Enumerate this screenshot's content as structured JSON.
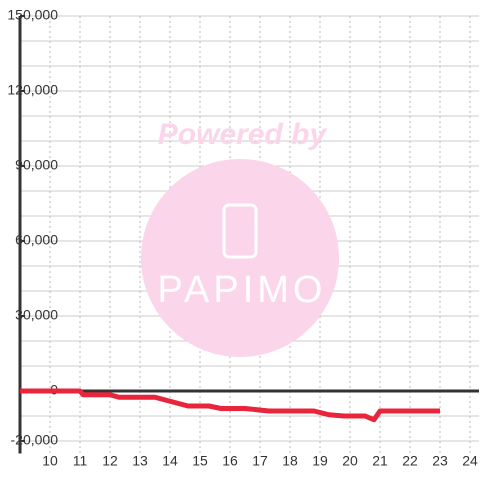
{
  "chart_data": {
    "type": "line",
    "watermark": {
      "top": "Powered by",
      "brand": "PAPIMO"
    },
    "xlim": [
      9,
      24.3
    ],
    "xticks": [
      10,
      11,
      12,
      13,
      14,
      15,
      16,
      17,
      18,
      19,
      20,
      21,
      22,
      23,
      24
    ],
    "ylim": [
      -25000,
      150000
    ],
    "yticks": [
      {
        "value": 150000,
        "label": "150,000"
      },
      {
        "value": 120000,
        "label": "120,000"
      },
      {
        "value": 90000,
        "label": "90,000"
      },
      {
        "value": 60000,
        "label": "60,000"
      },
      {
        "value": 30000,
        "label": "30,000"
      },
      0,
      {
        "value": -20000,
        "label": "-20,000"
      }
    ],
    "ygrid": [
      -20000,
      -10000,
      0,
      10000,
      20000,
      30000,
      40000,
      50000,
      60000,
      70000,
      80000,
      90000,
      100000,
      110000,
      120000,
      130000,
      140000,
      150000
    ],
    "grid": true,
    "series": [
      {
        "color": "#e8253b",
        "x": [
          9,
          11,
          11.1,
          12,
          12.3,
          13.5,
          14.6,
          15.3,
          15.7,
          16.5,
          17.3,
          18.8,
          19.3,
          19.8,
          20.5,
          20.8,
          21,
          23
        ],
        "values": [
          0,
          0,
          -1500,
          -1500,
          -2500,
          -2500,
          -6000,
          -6000,
          -7000,
          -7000,
          -8000,
          -8000,
          -9500,
          -10000,
          -10000,
          -11500,
          -8000,
          -8000
        ]
      }
    ]
  }
}
